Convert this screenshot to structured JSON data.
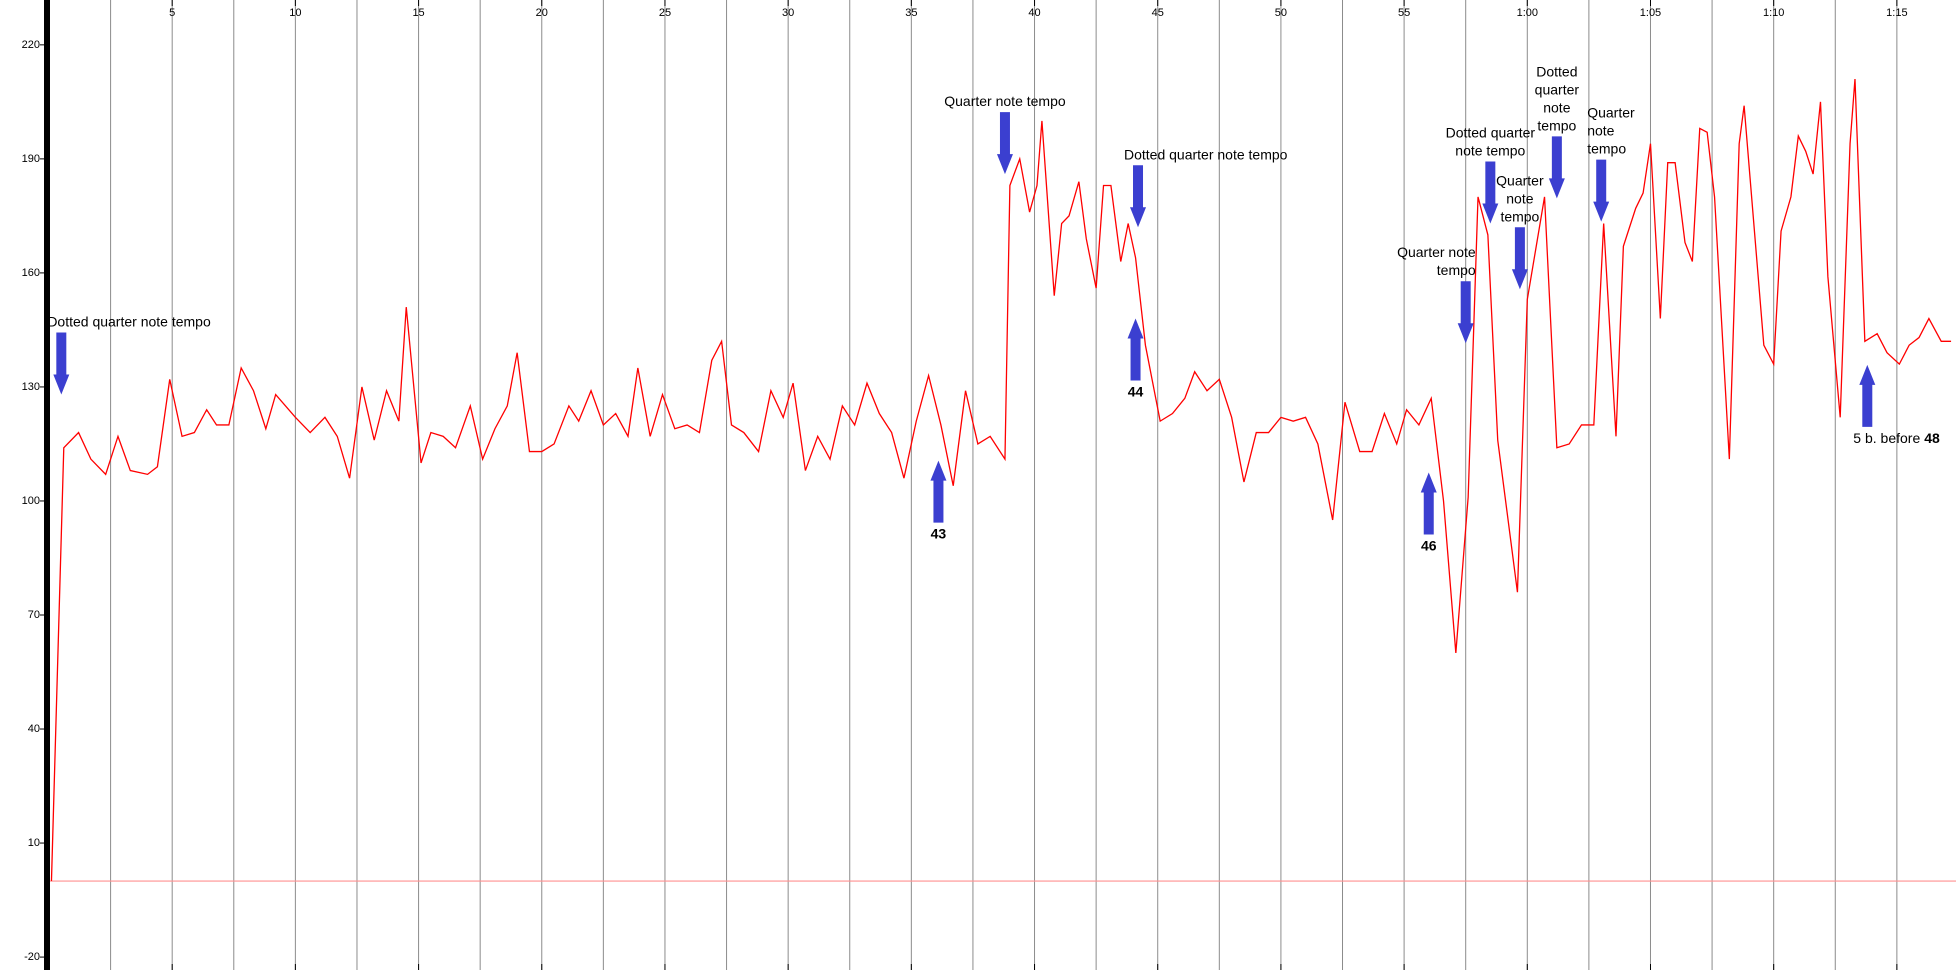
{
  "chart_data": {
    "type": "line",
    "color": "#ff0000",
    "x": [
      0.1,
      0.6,
      1.2,
      1.7,
      2.3,
      2.8,
      3.3,
      4.0,
      4.4,
      4.9,
      5.4,
      5.9,
      6.4,
      6.8,
      7.3,
      7.8,
      8.3,
      8.8,
      9.2,
      10.0,
      10.6,
      11.2,
      11.7,
      12.2,
      12.7,
      13.2,
      13.7,
      14.2,
      14.5,
      15.1,
      15.5,
      16.0,
      16.5,
      17.1,
      17.6,
      18.1,
      18.6,
      19.0,
      19.5,
      20.0,
      20.5,
      21.1,
      21.5,
      22.0,
      22.5,
      23.0,
      23.5,
      23.9,
      24.4,
      24.9,
      25.4,
      25.9,
      26.4,
      26.9,
      27.3,
      27.7,
      28.2,
      28.8,
      29.3,
      29.8,
      30.2,
      30.7,
      31.2,
      31.7,
      32.2,
      32.7,
      33.2,
      33.7,
      34.2,
      34.7,
      35.2,
      35.7,
      36.2,
      36.7,
      37.2,
      37.7,
      38.2,
      38.8,
      39.0,
      39.4,
      39.8,
      40.1,
      40.3,
      40.8,
      41.1,
      41.4,
      41.8,
      42.1,
      42.5,
      42.8,
      43.1,
      43.5,
      43.8,
      44.1,
      44.5,
      45.1,
      45.6,
      46.1,
      46.5,
      47.0,
      47.5,
      48.0,
      48.5,
      49.0,
      49.5,
      50.0,
      50.5,
      51.0,
      51.5,
      52.1,
      52.6,
      53.2,
      53.7,
      54.2,
      54.7,
      55.1,
      55.6,
      56.1,
      56.6,
      57.1,
      57.6,
      58.0,
      58.4,
      58.8,
      59.6,
      60.0,
      60.7,
      61.2,
      61.7,
      62.2,
      62.7,
      63.1,
      63.6,
      63.9,
      64.4,
      64.7,
      65.0,
      65.4,
      65.7,
      66.0,
      66.4,
      66.7,
      67.0,
      67.3,
      67.6,
      68.2,
      68.6,
      68.8,
      69.6,
      70.0,
      70.3,
      70.7,
      71.0,
      71.3,
      71.6,
      71.9,
      72.2,
      72.7,
      73.1,
      73.3,
      73.7,
      74.2,
      74.6,
      75.1,
      75.5,
      75.9,
      76.3,
      76.8,
      77.2
    ],
    "values": [
      0,
      114,
      118,
      111,
      107,
      117,
      108,
      107,
      109,
      132,
      117,
      118,
      124,
      120,
      120,
      135,
      129,
      119,
      128,
      122,
      118,
      122,
      117,
      106,
      130,
      116,
      129,
      121,
      151,
      110,
      118,
      117,
      114,
      125,
      111,
      119,
      125,
      139,
      113,
      113,
      115,
      125,
      121,
      129,
      120,
      123,
      117,
      135,
      117,
      128,
      119,
      120,
      118,
      137,
      142,
      120,
      118,
      113,
      129,
      122,
      131,
      108,
      117,
      111,
      125,
      120,
      131,
      123,
      118,
      106,
      121,
      133,
      120,
      104,
      129,
      115,
      117,
      111,
      183,
      190,
      176,
      183,
      200,
      154,
      173,
      175,
      184,
      169,
      156,
      183,
      183,
      163,
      173,
      164,
      141,
      121,
      123,
      127,
      134,
      129,
      132,
      122,
      105,
      118,
      118,
      122,
      121,
      122,
      115,
      95,
      126,
      113,
      113,
      123,
      115,
      124,
      120,
      127,
      100,
      60,
      101,
      180,
      170,
      116,
      76,
      153,
      180,
      114,
      115,
      120,
      120,
      173,
      117,
      167,
      177,
      181,
      194,
      148,
      189,
      189,
      168,
      163,
      198,
      197,
      180,
      111,
      194,
      204,
      141,
      136,
      171,
      180,
      196,
      192,
      186,
      205,
      159,
      122,
      194,
      211,
      142,
      144,
      139,
      136,
      141,
      143,
      148,
      142,
      142
    ],
    "xlim": [
      0,
      77.4
    ],
    "ylim": [
      -23.4,
      231.8
    ],
    "xticks": [
      5,
      10,
      15,
      20,
      25,
      30,
      35,
      40,
      45,
      50,
      55,
      {
        "value": 60,
        "label": "1:00"
      },
      {
        "value": 65,
        "label": "1:05"
      },
      {
        "value": 70,
        "label": "1:10"
      },
      {
        "value": 75,
        "label": "1:15"
      }
    ],
    "yticks": [
      220,
      190,
      160,
      130,
      100,
      70,
      40,
      10,
      -20
    ],
    "x_gridlines": [
      2.5,
      5,
      7.5,
      10,
      12.5,
      15,
      17.5,
      20,
      22.5,
      25,
      27.5,
      30,
      32.5,
      35,
      37.5,
      40,
      42.5,
      45,
      47.5,
      50,
      52.5,
      55,
      57.5,
      60,
      62.5,
      65,
      67.5,
      70,
      72.5,
      75
    ],
    "grid_color": "#8c8c8c",
    "reference_line": {
      "value": 0,
      "color": "#ff9090"
    },
    "arrow_color": "#3b3fd0",
    "annotations": [
      {
        "lines": [
          "Dotted quarter note tempo"
        ],
        "x": 0.5,
        "y": 128,
        "direction": "down",
        "anchor": "start"
      },
      {
        "lines": [
          "Quarter note tempo"
        ],
        "x": 38.8,
        "y": 186,
        "direction": "down",
        "anchor": "middle"
      },
      {
        "lines": [
          "Dotted quarter note tempo"
        ],
        "x": 44.2,
        "y": 172,
        "direction": "down",
        "anchor": "start"
      },
      {
        "lines": [
          "43"
        ],
        "bold": true,
        "x": 36.1,
        "y": 110.6,
        "direction": "up",
        "anchor": "middle"
      },
      {
        "lines": [
          "44"
        ],
        "bold": true,
        "x": 44.1,
        "y": 148,
        "direction": "up",
        "anchor": "middle"
      },
      {
        "lines": [
          "Quarter note",
          "tempo"
        ],
        "x": 57.5,
        "y": 141.5,
        "direction": "down",
        "anchor": "end"
      },
      {
        "lines": [
          "46"
        ],
        "bold": true,
        "x": 56.0,
        "y": 107.5,
        "direction": "up",
        "anchor": "middle"
      },
      {
        "lines": [
          "Dotted quarter",
          "note tempo"
        ],
        "x": 58.5,
        "y": 173,
        "direction": "down",
        "anchor": "middle"
      },
      {
        "lines": [
          "Quarter",
          "note",
          "tempo"
        ],
        "x": 59.7,
        "y": 155.7,
        "direction": "down",
        "anchor": "middle"
      },
      {
        "lines": [
          "Dotted",
          "quarter",
          "note",
          "tempo"
        ],
        "x": 61.2,
        "y": 179.6,
        "direction": "down",
        "anchor": "middle"
      },
      {
        "lines": [
          "Quarter",
          "note",
          "tempo"
        ],
        "x": 63.0,
        "y": 173.5,
        "direction": "down",
        "anchor": "start"
      },
      {
        "lines": [
          "5 b. before"
        ],
        "bold_tail": "48",
        "x": 73.8,
        "y": 135.8,
        "direction": "up",
        "anchor": "start"
      }
    ]
  }
}
